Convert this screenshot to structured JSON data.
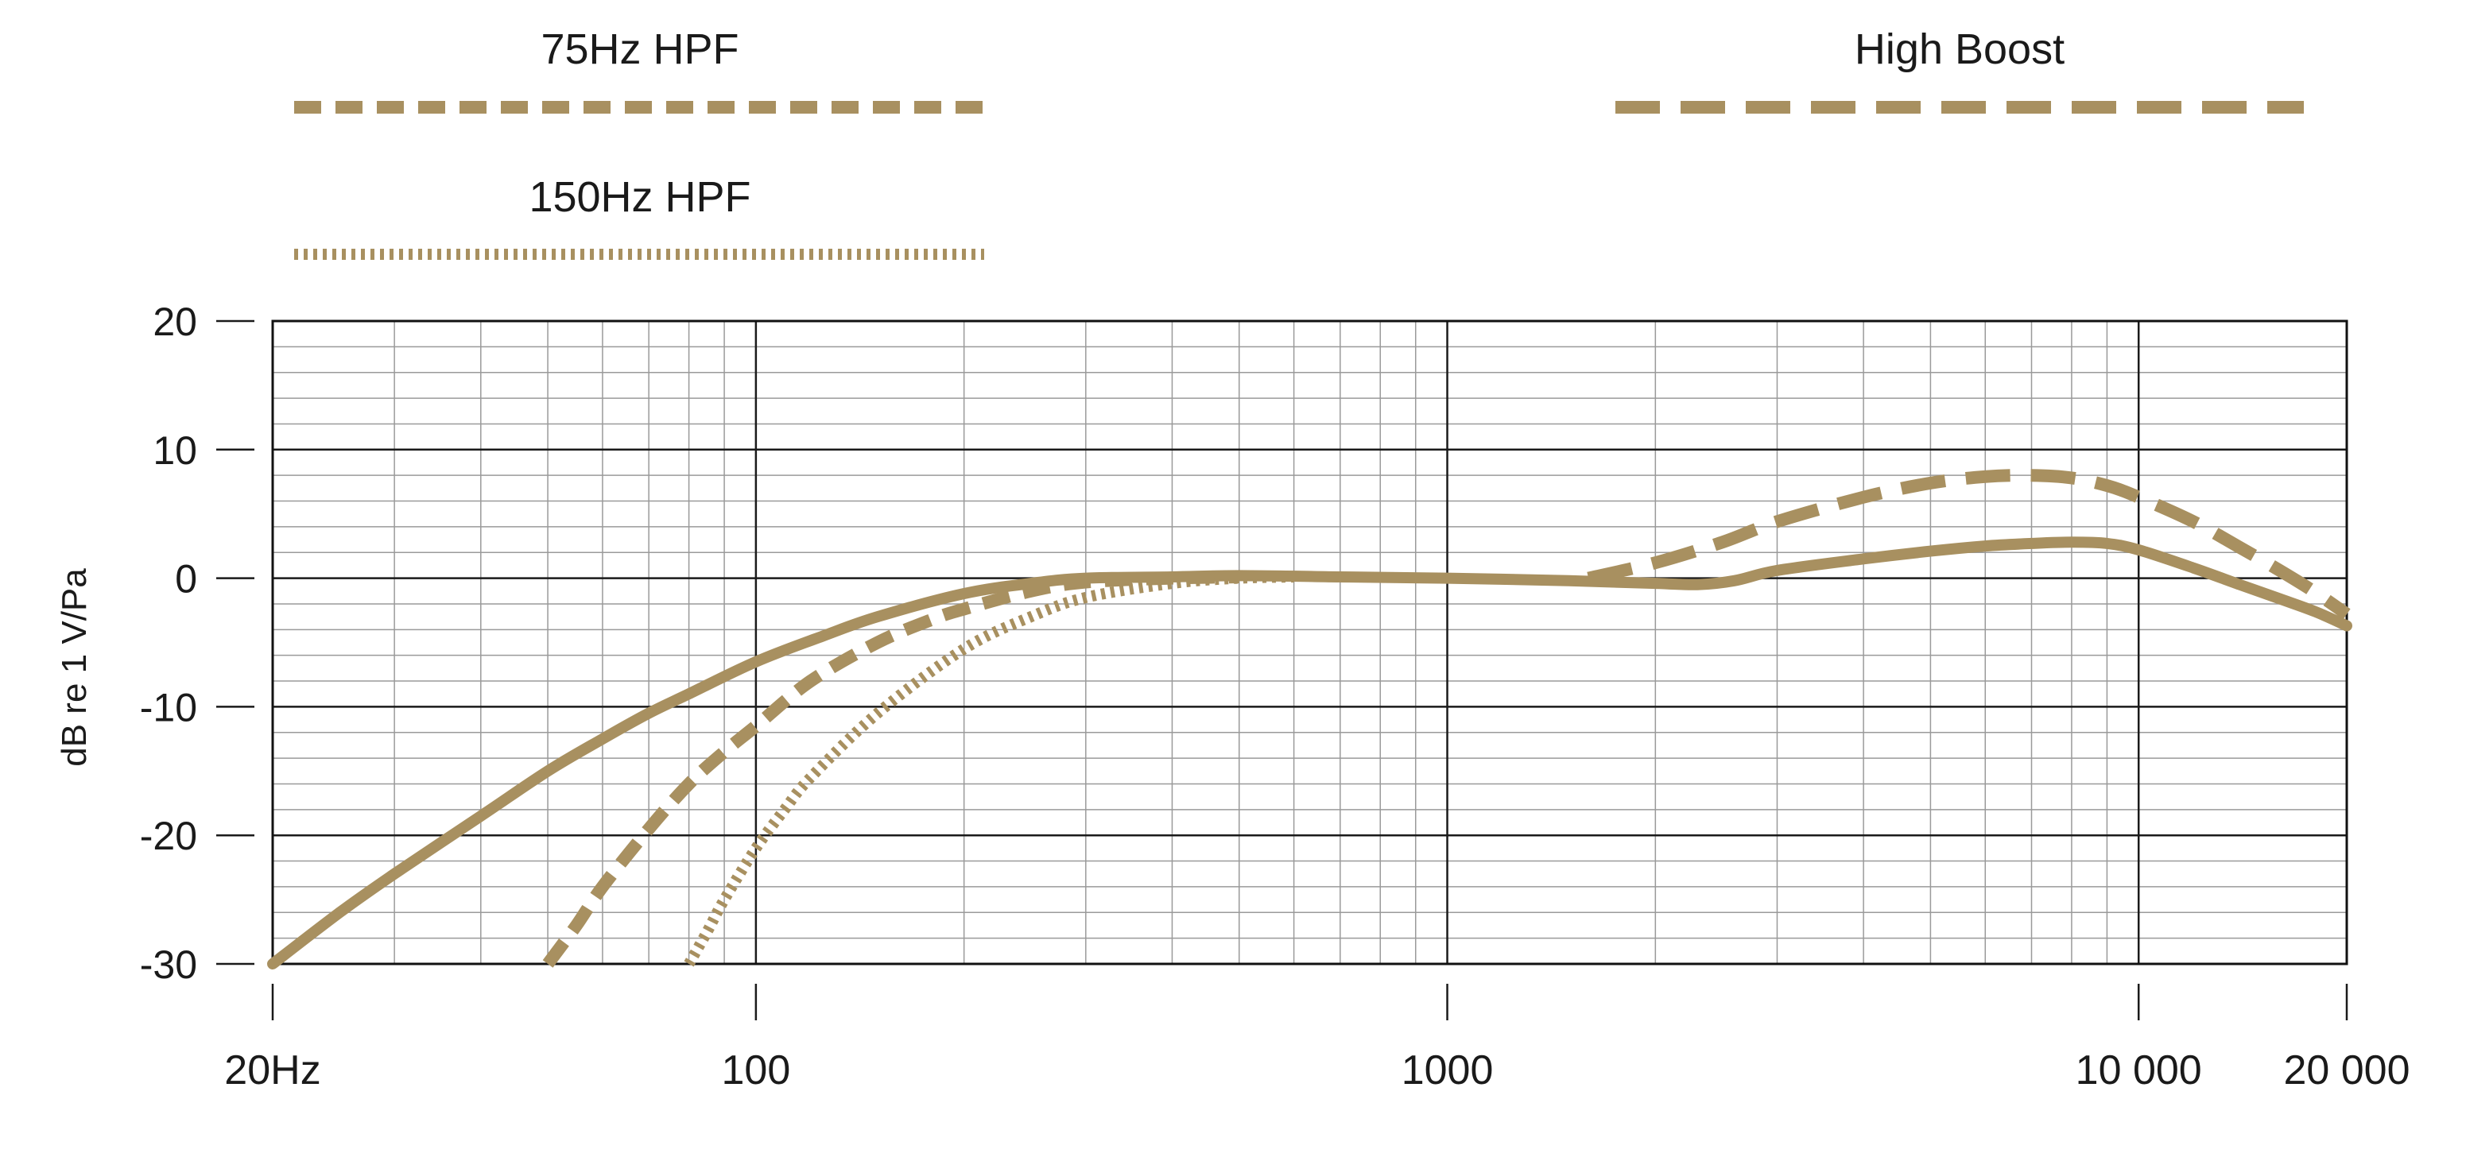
{
  "chart_data": {
    "type": "line",
    "x_scale": "log",
    "xlim": [
      20,
      20000
    ],
    "ylim": [
      -30,
      20
    ],
    "grid": true,
    "ylabel": "dB re 1 V/Pa",
    "xlabel": "",
    "title": "",
    "x_ticks": [
      {
        "value": 20,
        "label": "20Hz"
      },
      {
        "value": 100,
        "label": "100"
      },
      {
        "value": 1000,
        "label": "1000"
      },
      {
        "value": 10000,
        "label": "10 000"
      },
      {
        "value": 20000,
        "label": "20 000"
      }
    ],
    "y_ticks": [
      {
        "value": 20,
        "label": "20"
      },
      {
        "value": 10,
        "label": "10"
      },
      {
        "value": 0,
        "label": "0"
      },
      {
        "value": -10,
        "label": "-10"
      },
      {
        "value": -20,
        "label": "-20"
      },
      {
        "value": -30,
        "label": "-30"
      }
    ],
    "legend_placement": "top",
    "legend": [
      {
        "label": "75Hz HPF",
        "style": "dashed",
        "position": "top-left"
      },
      {
        "label": "150Hz HPF",
        "style": "dotted",
        "position": "top-left"
      },
      {
        "label": "High Boost",
        "style": "long-dashed",
        "position": "top-right"
      }
    ],
    "color": "#a89060",
    "series": [
      {
        "style": "solid",
        "x": [
          20,
          25,
          30,
          40,
          50,
          60,
          70,
          80,
          100,
          125,
          150,
          200,
          250,
          300,
          400,
          500,
          700,
          1000,
          1500,
          2000,
          2300,
          2600,
          3000,
          4000,
          5000,
          6000,
          7000,
          8000,
          9000,
          10000,
          12000,
          14000,
          16000,
          18000,
          20000
        ],
        "y": [
          -30,
          -26,
          -23,
          -18.5,
          -15,
          -12.5,
          -10.5,
          -9,
          -6.5,
          -4.5,
          -3,
          -1.2,
          -0.4,
          0,
          0.1,
          0.2,
          0.1,
          0,
          -0.2,
          -0.4,
          -0.5,
          -0.2,
          0.6,
          1.5,
          2.1,
          2.5,
          2.7,
          2.8,
          2.7,
          2.2,
          0.8,
          -0.5,
          -1.6,
          -2.6,
          -3.7
        ]
      },
      {
        "name": "75Hz HPF",
        "style": "dashed",
        "x": [
          50,
          55,
          60,
          70,
          80,
          90,
          100,
          120,
          150,
          180,
          200,
          250,
          300,
          400,
          500
        ],
        "y": [
          -30,
          -27,
          -24,
          -19.5,
          -16,
          -13.5,
          -11.5,
          -8,
          -5,
          -3.2,
          -2.4,
          -1,
          -0.3,
          0,
          0.1
        ]
      },
      {
        "name": "150Hz HPF",
        "style": "dotted",
        "x": [
          80,
          85,
          90,
          100,
          110,
          120,
          150,
          200,
          250,
          300,
          400,
          500,
          600
        ],
        "y": [
          -30,
          -27.5,
          -25,
          -21,
          -18,
          -15.5,
          -10.5,
          -5.5,
          -3,
          -1.5,
          -0.4,
          0,
          0.1
        ]
      },
      {
        "name": "High Boost",
        "style": "long-dashed",
        "x": [
          1600,
          2000,
          2500,
          3000,
          4000,
          5000,
          6000,
          7000,
          8000,
          9000,
          10000,
          12000,
          14000,
          16000,
          18000,
          20000
        ],
        "y": [
          0,
          1.2,
          2.8,
          4.4,
          6.3,
          7.4,
          7.9,
          8.0,
          7.8,
          7.2,
          6.3,
          4.4,
          2.4,
          0.6,
          -1.1,
          -2.8
        ]
      }
    ]
  }
}
